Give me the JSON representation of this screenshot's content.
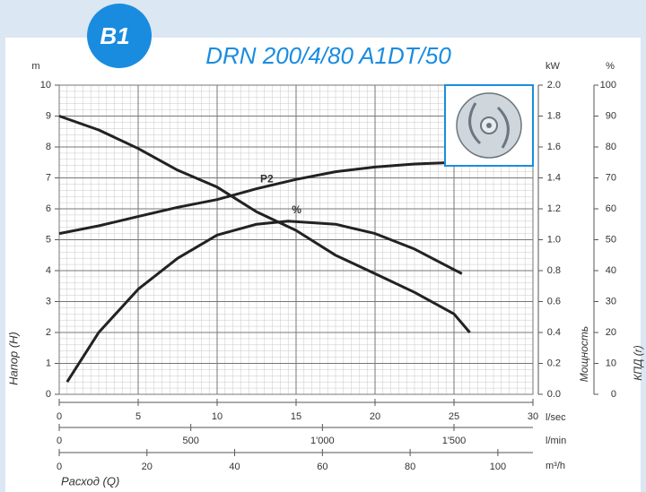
{
  "badge": "B1",
  "chart_data": {
    "type": "line",
    "title": "DRN 200/4/80 A1DT/50",
    "grid": true,
    "xunit": "l/sec",
    "xlim": [
      0,
      30
    ],
    "xticks": [
      0,
      5,
      10,
      15,
      20,
      25,
      30
    ],
    "x2unit": "l/min",
    "x2lim": [
      0,
      1800
    ],
    "x2ticks": [
      0,
      500,
      {
        "value": 1000,
        "label": "1'000"
      },
      {
        "value": 1500,
        "label": "1'500"
      }
    ],
    "x3unit": "m³/h",
    "x3lim": [
      0,
      108
    ],
    "x3ticks": [
      0,
      20,
      40,
      60,
      80,
      100
    ],
    "xlabel": "Расход (Q)",
    "yunit": "m",
    "ylabel": "Напор (H)",
    "ylim": [
      0,
      10
    ],
    "yticks": [
      0,
      1,
      2,
      3,
      4,
      5,
      6,
      7,
      8,
      9,
      10
    ],
    "y2unit": "kW",
    "y2label": "Мощность",
    "y2lim": [
      0,
      2
    ],
    "y2ticks": [
      {
        "value": 0,
        "label": "0.0"
      },
      0.2,
      0.4,
      0.6,
      0.8,
      {
        "value": 1,
        "label": "1.0"
      },
      1.2,
      1.4,
      1.6,
      1.8,
      {
        "value": 2,
        "label": "2.0"
      }
    ],
    "y3unit": "%",
    "y3label": "КПД (r)",
    "y3lim": [
      0,
      100
    ],
    "y3ticks": [
      0,
      10,
      20,
      30,
      40,
      50,
      60,
      70,
      80,
      90,
      100
    ],
    "series": [
      {
        "color": "#222222",
        "x": [
          0,
          2.5,
          5,
          7.5,
          10,
          12.5,
          15,
          17.5,
          20,
          22.5,
          25,
          26
        ],
        "values": [
          9.0,
          8.55,
          7.95,
          7.25,
          6.7,
          5.9,
          5.3,
          4.5,
          3.9,
          3.3,
          2.6,
          2.0
        ]
      },
      {
        "color": "#222222",
        "axis": "y2",
        "label": "P2",
        "x": [
          0,
          2.5,
          5,
          7.5,
          10,
          12.5,
          15,
          17.5,
          20,
          22.5,
          25
        ],
        "values": [
          1.04,
          1.09,
          1.15,
          1.21,
          1.26,
          1.33,
          1.39,
          1.44,
          1.47,
          1.49,
          1.5
        ]
      },
      {
        "color": "#222222",
        "axis": "y3",
        "label": "%",
        "x": [
          0.5,
          2.5,
          5,
          7.5,
          10,
          12.5,
          14.5,
          17.5,
          20,
          22.5,
          25.5
        ],
        "values": [
          4,
          20,
          34,
          44,
          51.5,
          55,
          56,
          55,
          52,
          47,
          39
        ]
      }
    ]
  }
}
